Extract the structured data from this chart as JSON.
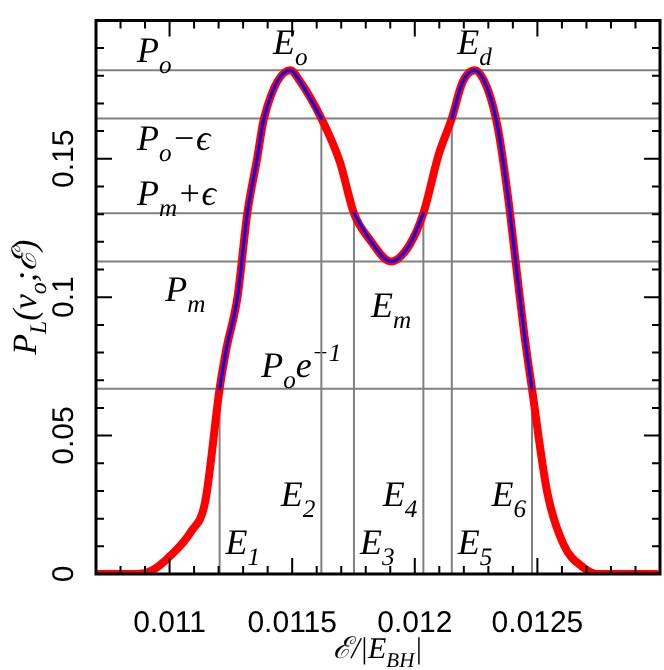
{
  "chart_data": {
    "type": "line",
    "xlabel": "ℰ/|E$_{BH}$|",
    "ylabel": "P$_{L}$(v$_{o}$;ℰ)",
    "x": [
      0.01071,
      0.010863,
      0.010927,
      0.011008,
      0.011089,
      0.011145,
      0.011204,
      0.011231,
      0.011277,
      0.011317,
      0.011357,
      0.011385,
      0.011492,
      0.011532,
      0.011619,
      0.011694,
      0.011752,
      0.011815,
      0.011903,
      0.011976,
      0.012035,
      0.012097,
      0.012151,
      0.012194,
      0.012244,
      0.012298,
      0.012339,
      0.012379,
      0.012419,
      0.012446,
      0.012478,
      0.01254,
      0.012607,
      0.012688,
      0.012742,
      0.012984
    ],
    "series": [
      {
        "color": "#ff0000",
        "values": [
          0,
          0,
          0.0012,
          0.007,
          0.0155,
          0.026,
          0.0669,
          0.081,
          0.1,
          0.1303,
          0.15,
          0.1646,
          0.182,
          0.178,
          0.1646,
          0.149,
          0.1303,
          0.121,
          0.1129,
          0.1185,
          0.1303,
          0.1514,
          0.1646,
          0.1775,
          0.182,
          0.175,
          0.161,
          0.137,
          0.107,
          0.087,
          0.0669,
          0.0296,
          0.0106,
          0.0023,
          0,
          0
        ]
      },
      {
        "color": "#0000ff",
        "values": [
          null,
          null,
          null,
          null,
          null,
          null,
          0.0669,
          0.081,
          0.1,
          0.1303,
          0.15,
          0.1646,
          0.182,
          0.178,
          0.1646,
          null,
          0.1303,
          0.121,
          0.1129,
          0.1185,
          0.1303,
          null,
          0.1646,
          0.1775,
          0.182,
          0.175,
          0.161,
          0.137,
          0.107,
          0.087,
          0.0669,
          null,
          null,
          null,
          null,
          null
        ]
      }
    ],
    "xlim": [
      0.0107,
      0.013
    ],
    "ylim": [
      0,
      0.2
    ],
    "xticks": [
      {
        "value": 0.0108,
        "label": null
      },
      {
        "value": 0.0109,
        "label": null
      },
      0.011,
      {
        "value": 0.0111,
        "label": null
      },
      {
        "value": 0.0112,
        "label": null
      },
      {
        "value": 0.0113,
        "label": null
      },
      {
        "value": 0.0114,
        "label": null
      },
      0.0115,
      {
        "value": 0.0116,
        "label": null
      },
      {
        "value": 0.0117,
        "label": null
      },
      {
        "value": 0.0118,
        "label": null
      },
      {
        "value": 0.0119,
        "label": null
      },
      0.012,
      {
        "value": 0.0121,
        "label": null
      },
      {
        "value": 0.0122,
        "label": null
      },
      {
        "value": 0.0123,
        "label": null
      },
      {
        "value": 0.0124,
        "label": null
      },
      0.0125,
      {
        "value": 0.0126,
        "label": null
      },
      {
        "value": 0.0127,
        "label": null
      },
      {
        "value": 0.0128,
        "label": null
      },
      {
        "value": 0.0129,
        "label": null
      }
    ],
    "yticks": [
      0,
      {
        "value": 0.01,
        "label": null
      },
      {
        "value": 0.02,
        "label": null
      },
      {
        "value": 0.03,
        "label": null
      },
      {
        "value": 0.04,
        "label": null
      },
      0.05,
      {
        "value": 0.06,
        "label": null
      },
      {
        "value": 0.07,
        "label": null
      },
      {
        "value": 0.08,
        "label": null
      },
      {
        "value": 0.09,
        "label": null
      },
      0.1,
      {
        "value": 0.11,
        "label": null
      },
      {
        "value": 0.12,
        "label": null
      },
      {
        "value": 0.13,
        "label": null
      },
      {
        "value": 0.14,
        "label": null
      },
      0.15,
      {
        "value": 0.16,
        "label": null
      },
      {
        "value": 0.17,
        "label": null
      },
      {
        "value": 0.18,
        "label": null
      },
      {
        "value": 0.19,
        "label": null
      }
    ],
    "ref_lines": [
      {
        "axis": "y",
        "value": 0.182,
        "label": "P$_{o}$",
        "color": "#808080"
      },
      {
        "axis": "y",
        "value": 0.1646,
        "label": "P$_{o}$−ϵ",
        "color": "#808080"
      },
      {
        "axis": "y",
        "value": 0.1303,
        "label": "P$_{m}$+ϵ",
        "color": "#808080"
      },
      {
        "axis": "y",
        "value": 0.1129,
        "label": "P$_{m}$",
        "color": "#808080"
      },
      {
        "axis": "y",
        "value": 0.0669,
        "label": "P$_{o}$e$^{−1}$",
        "color": "#808080"
      },
      {
        "axis": "x",
        "value": 0.011204,
        "label": "E$_{1}$",
        "color": "#808080"
      },
      {
        "axis": "x",
        "value": 0.011619,
        "label": "E$_{2}$",
        "color": "#808080"
      },
      {
        "axis": "x",
        "value": 0.011752,
        "label": "E$_{3}$",
        "color": "#808080"
      },
      {
        "axis": "x",
        "value": 0.012035,
        "label": "E$_{4}$",
        "color": "#808080"
      },
      {
        "axis": "x",
        "value": 0.012151,
        "label": "E$_{5}$",
        "color": "#808080"
      },
      {
        "axis": "x",
        "value": 0.012478,
        "label": "E$_{6}$",
        "color": "#808080"
      }
    ],
    "annotations": [
      {
        "text": "E$_{o}$",
        "x": 0.011492,
        "y": 0.182
      },
      {
        "text": "E$_{d}$",
        "x": 0.012244,
        "y": 0.182
      },
      {
        "text": "E$_{m}$",
        "x": 0.011903,
        "y": 0.1129
      }
    ],
    "legend": false,
    "marker": "none",
    "line_style": "solid"
  }
}
